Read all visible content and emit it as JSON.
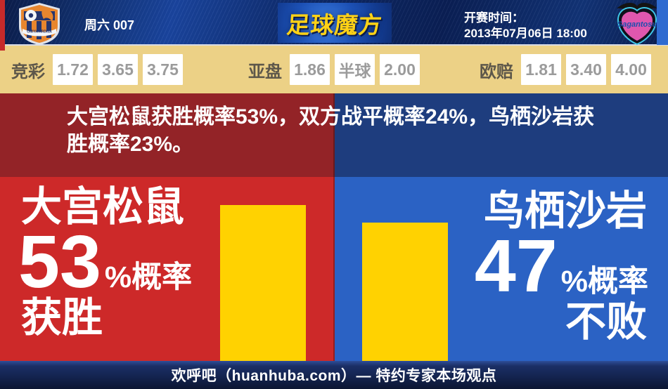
{
  "header": {
    "match_label": "周六 007",
    "brand_title": "足球魔方",
    "kickoff_label": "开赛时间：",
    "kickoff_time": "2013年07月06日 18:00",
    "home_crest_text": "OMIYA ARDIJA",
    "away_crest_text": "Sagantosu"
  },
  "odds": {
    "groups": [
      {
        "label": "竞彩",
        "values": [
          "1.72",
          "3.65",
          "3.75"
        ]
      },
      {
        "label": "亚盘",
        "values": [
          "1.86",
          "半球",
          "2.00"
        ]
      },
      {
        "label": "欧赔",
        "values": [
          "1.81",
          "3.40",
          "4.00"
        ]
      }
    ]
  },
  "summary": {
    "line1": "大宫松鼠获胜概率53%，双方战平概率24%，鸟栖沙岩获",
    "line2": "胜概率23%。"
  },
  "panels": {
    "home": {
      "name": "大宫松鼠",
      "percent": "53",
      "suffix": "%概率",
      "verdict": "获胜"
    },
    "away": {
      "name": "鸟栖沙岩",
      "percent": "47",
      "suffix": "%概率",
      "verdict": "不败"
    }
  },
  "footer": {
    "text": "欢呼吧（huanhuba.com）— 特约专家本场观点"
  },
  "colors": {
    "home_dark": "#932327",
    "home_bright": "#cd2929",
    "away_dark": "#1e3d7e",
    "away_bright": "#2b62c4",
    "bar_yellow": "#ffd201",
    "odds_bar_bg": "#ecd186",
    "brand_yellow": "#ffd216",
    "edge_red": "#c62a2a",
    "edge_blue": "#2f6bd0"
  },
  "chart_data": {
    "type": "bar",
    "categories": [
      "大宫松鼠 获胜",
      "鸟栖沙岩 不败"
    ],
    "values": [
      53,
      47
    ],
    "unit": "%",
    "bar_color": "#ffd201",
    "probabilities": {
      "home_win": 53,
      "draw": 24,
      "away_win": 23,
      "away_unbeaten": 47
    }
  }
}
